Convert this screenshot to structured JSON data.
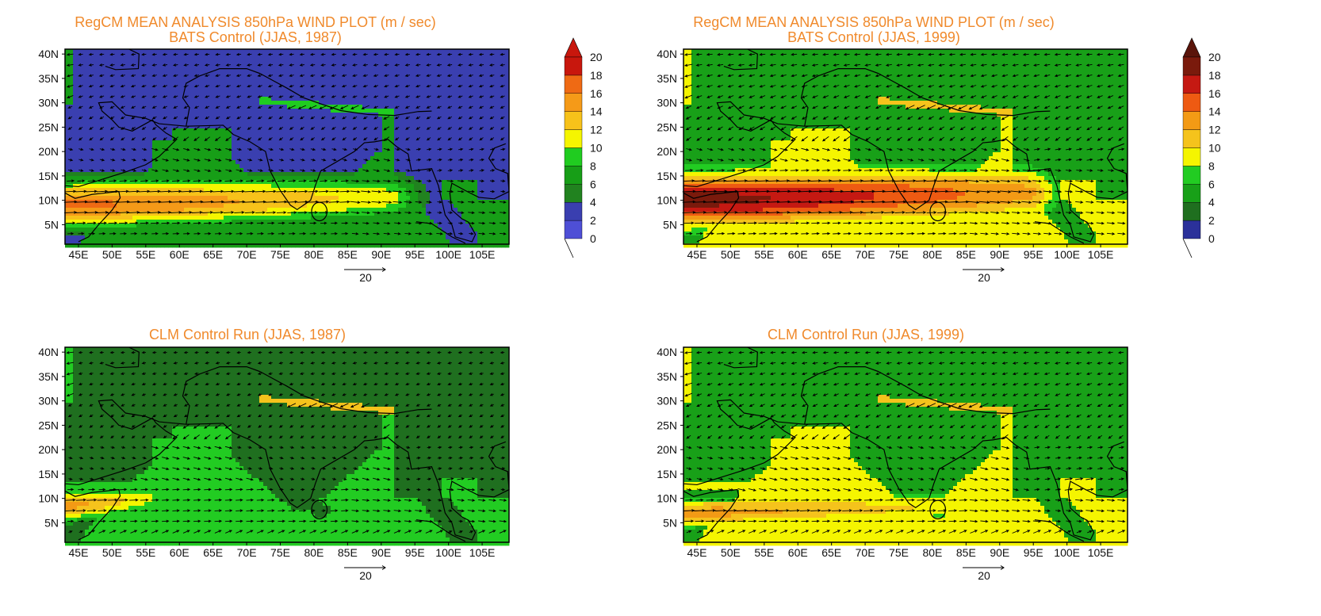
{
  "panels": [
    {
      "id": "p1",
      "title_lines": [
        "RegCM MEAN ANALYSIS 850hPa WIND PLOT (m / sec)",
        "BATS Control (JJAS, 1987)"
      ],
      "ref_vector_label": "20",
      "palette": "bats1987",
      "jet": {
        "peak": 16.5,
        "lat": 9.5,
        "lon_start": 44,
        "lon_end": 92,
        "width": 5.5
      },
      "land_level": 3,
      "ocean_level": 6
    },
    {
      "id": "p2",
      "title_lines": [
        "RegCM MEAN ANALYSIS 850hPa WIND PLOT (m / sec)",
        "BATS Control (JJAS, 1999)"
      ],
      "ref_vector_label": "20",
      "palette": "bats1999",
      "jet": {
        "peak": 19.0,
        "lat": 10.5,
        "lon_start": 44,
        "lon_end": 95,
        "width": 6.5
      },
      "land_level": 5,
      "ocean_level": 8
    },
    {
      "id": "p3",
      "title_lines": [
        "CLM Control Run (JJAS, 1987)"
      ],
      "ref_vector_label": "20",
      "palette": "bats1999",
      "jet": {
        "peak": 12.5,
        "lat": 9.0,
        "lon_start": 44,
        "lon_end": 56,
        "width": 3.5
      },
      "land_level": 2,
      "ocean_level": 7
    },
    {
      "id": "p4",
      "title_lines": [
        "CLM Control Run (JJAS, 1999)"
      ],
      "ref_vector_label": "20",
      "palette": "bats1999",
      "jet": {
        "peak": 13.0,
        "lat": 7.5,
        "lon_start": 44,
        "lon_end": 90,
        "width": 3.5
      },
      "land_level": 4,
      "ocean_level": 8
    }
  ],
  "axes": {
    "lon_range": [
      43,
      109
    ],
    "lat_range": [
      1,
      41
    ],
    "x_tick_labels": [
      "45E",
      "50E",
      "55E",
      "60E",
      "65E",
      "70E",
      "75E",
      "80E",
      "85E",
      "90E",
      "95E",
      "100E",
      "105E"
    ],
    "x_tick_values": [
      45,
      50,
      55,
      60,
      65,
      70,
      75,
      80,
      85,
      90,
      95,
      100,
      105
    ],
    "y_tick_labels": [
      "5N",
      "10N",
      "15N",
      "20N",
      "25N",
      "30N",
      "35N",
      "40N"
    ],
    "y_tick_values": [
      5,
      10,
      15,
      20,
      25,
      30,
      35,
      40
    ]
  },
  "colorbars": [
    {
      "id": "cb1",
      "labels": [
        "0",
        "2",
        "4",
        "6",
        "8",
        "10",
        "12",
        "14",
        "16",
        "18",
        "20"
      ],
      "colors": [
        "#4e4fd6",
        "#3a3fb0",
        "#21821f",
        "#179e17",
        "#20cc20",
        "#f5f500",
        "#f7c21a",
        "#f59a18",
        "#ef6a14",
        "#c8170d"
      ],
      "top_arrow_color": "#c8170d"
    },
    {
      "id": "cb2",
      "labels": [
        "0",
        "2",
        "4",
        "6",
        "8",
        "10",
        "12",
        "14",
        "16",
        "18",
        "20"
      ],
      "colors": [
        "#2b319a",
        "#1f6f1f",
        "#18a018",
        "#22cc22",
        "#f5f500",
        "#f5c31c",
        "#f39a15",
        "#ee5a12",
        "#c51912",
        "#7a1a0c"
      ],
      "top_arrow_color": "#5a140a"
    }
  ]
}
